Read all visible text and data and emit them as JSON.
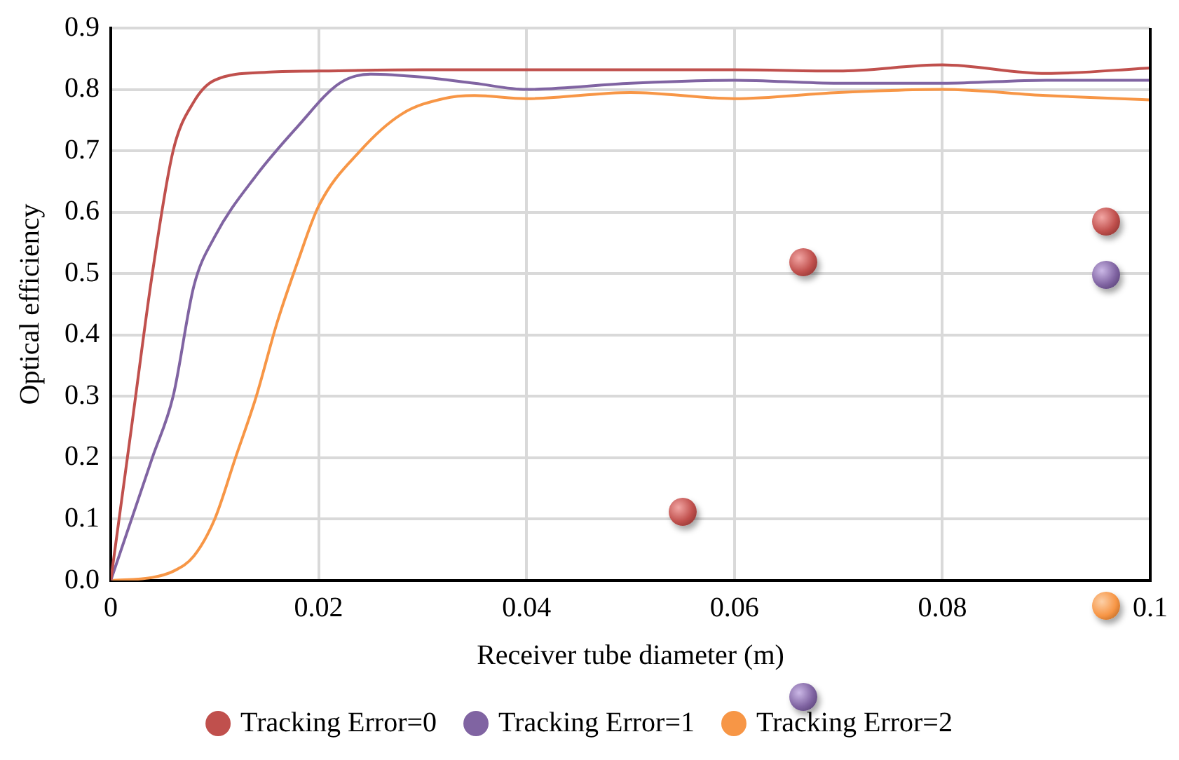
{
  "chart_data": {
    "type": "line",
    "xlabel": "Receiver tube diameter (m)",
    "ylabel": "Optical efficiency",
    "xlim": [
      0,
      0.1
    ],
    "xticks": [
      0,
      0.02,
      0.04,
      0.06,
      0.08,
      0.1
    ],
    "ylim": [
      0,
      0.9
    ],
    "yticks": [
      {
        "value": 0,
        "label": "0.0"
      },
      0.1,
      0.2,
      0.3,
      0.4,
      0.5,
      0.6,
      0.7,
      0.8,
      0.9
    ],
    "grid": true,
    "legend": "bottom",
    "marker": "none",
    "line_style": "solid",
    "series": [
      {
        "name": "Tracking Error=0",
        "color": "#c0504d",
        "x": [
          0,
          0.002,
          0.004,
          0.006,
          0.008,
          0.01,
          0.015,
          0.02,
          0.03,
          0.04,
          0.05,
          0.06,
          0.07,
          0.08,
          0.09,
          0.1
        ],
        "values": [
          0,
          0.25,
          0.5,
          0.7,
          0.78,
          0.815,
          0.828,
          0.83,
          0.832,
          0.832,
          0.832,
          0.832,
          0.83,
          0.84,
          0.826,
          0.835
        ]
      },
      {
        "name": "Tracking Error=1",
        "color": "#8064a2",
        "x": [
          0,
          0.004,
          0.006,
          0.008,
          0.01,
          0.014,
          0.018,
          0.022,
          0.025,
          0.03,
          0.035,
          0.04,
          0.05,
          0.06,
          0.07,
          0.08,
          0.09,
          0.1
        ],
        "values": [
          0,
          0.2,
          0.3,
          0.48,
          0.56,
          0.66,
          0.74,
          0.81,
          0.825,
          0.82,
          0.81,
          0.8,
          0.81,
          0.815,
          0.81,
          0.81,
          0.815,
          0.815
        ]
      },
      {
        "name": "Tracking Error=2",
        "color": "#f79646",
        "x": [
          0,
          0.004,
          0.006,
          0.008,
          0.01,
          0.012,
          0.014,
          0.016,
          0.018,
          0.02,
          0.024,
          0.028,
          0.032,
          0.035,
          0.04,
          0.05,
          0.06,
          0.07,
          0.08,
          0.09,
          0.1
        ],
        "values": [
          0,
          0.005,
          0.015,
          0.04,
          0.1,
          0.2,
          0.3,
          0.42,
          0.52,
          0.61,
          0.7,
          0.76,
          0.785,
          0.79,
          0.785,
          0.795,
          0.785,
          0.795,
          0.8,
          0.79,
          0.783
        ]
      }
    ]
  }
}
